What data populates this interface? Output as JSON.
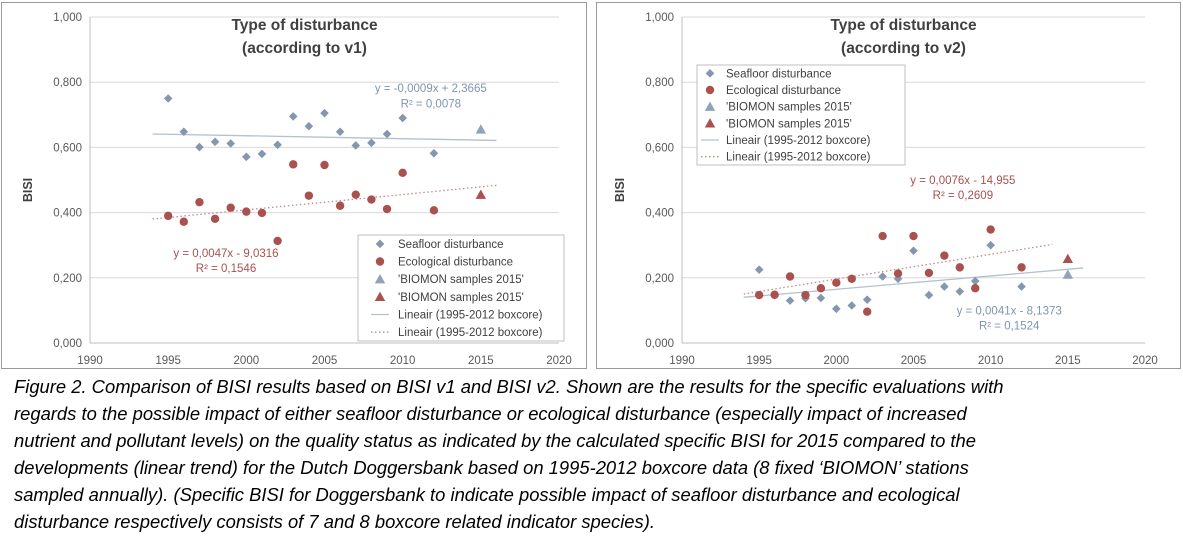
{
  "chart_data": [
    {
      "type": "scatter",
      "title": [
        "Type of disturbance",
        "(according to v1)"
      ],
      "xlabel": "",
      "ylabel": "BISI",
      "xlim": [
        1990,
        2020
      ],
      "ylim": [
        0,
        1
      ],
      "x_ticks": [
        "1990",
        "1995",
        "2000",
        "2005",
        "2010",
        "2015",
        "2020"
      ],
      "y_ticks": [
        "0,000",
        "0,200",
        "0,400",
        "0,600",
        "0,800",
        "1,000"
      ],
      "grid": "horizontal",
      "legend_position": "bottom-right",
      "series": [
        {
          "name": "Seafloor disturbance",
          "marker": "diamond",
          "color": "#8497b0",
          "points": [
            [
              1995,
              0.75
            ],
            [
              1996,
              0.648
            ],
            [
              1997,
              0.601
            ],
            [
              1998,
              0.617
            ],
            [
              1999,
              0.612
            ],
            [
              2000,
              0.571
            ],
            [
              2001,
              0.58
            ],
            [
              2002,
              0.608
            ],
            [
              2003,
              0.695
            ],
            [
              2004,
              0.665
            ],
            [
              2005,
              0.705
            ],
            [
              2006,
              0.648
            ],
            [
              2007,
              0.606
            ],
            [
              2008,
              0.614
            ],
            [
              2009,
              0.641
            ],
            [
              2010,
              0.69
            ],
            [
              2012,
              0.582
            ]
          ]
        },
        {
          "name": "Ecological disturbance",
          "marker": "circle",
          "color": "#a9514f",
          "points": [
            [
              1995,
              0.39
            ],
            [
              1996,
              0.372
            ],
            [
              1997,
              0.432
            ],
            [
              1998,
              0.381
            ],
            [
              1999,
              0.415
            ],
            [
              2000,
              0.403
            ],
            [
              2001,
              0.399
            ],
            [
              2002,
              0.313
            ],
            [
              2003,
              0.548
            ],
            [
              2004,
              0.452
            ],
            [
              2005,
              0.546
            ],
            [
              2006,
              0.421
            ],
            [
              2007,
              0.455
            ],
            [
              2008,
              0.44
            ],
            [
              2009,
              0.411
            ],
            [
              2010,
              0.522
            ],
            [
              2012,
              0.407
            ]
          ]
        },
        {
          "name": "'BIOMON samples 2015'",
          "marker": "triangle",
          "color": "#8fa4b8",
          "points": [
            [
              2015,
              0.655
            ]
          ]
        },
        {
          "name": "'BIOMON samples 2015'",
          "marker": "triangle",
          "color": "#a9514f",
          "points": [
            [
              2015,
              0.455
            ]
          ]
        },
        {
          "name": "Lineair (1995-2012 boxcore)",
          "marker": "line-solid",
          "color": "#b3c0cf",
          "line": [
            [
              1994,
              0.6411
            ],
            [
              2016,
              0.6213
            ]
          ]
        },
        {
          "name": "Lineair (1995-2012 boxcore)",
          "marker": "line-dotted",
          "color": "#c48a88",
          "line": [
            [
              1994,
              0.3802
            ],
            [
              2016,
              0.4836
            ]
          ]
        }
      ],
      "annotations": [
        {
          "text": "y = -0,0009x + 2,3665",
          "color": "#7f95ad",
          "x": 2011.8,
          "y": 0.77
        },
        {
          "text": "R² = 0,0078",
          "color": "#7f95ad",
          "x": 2011.8,
          "y": 0.723
        },
        {
          "text": "y = 0,0047x - 9,0316",
          "color": "#a9514f",
          "x": 1998.7,
          "y": 0.264
        },
        {
          "text": "R² = 0,1546",
          "color": "#a9514f",
          "x": 1998.7,
          "y": 0.218
        }
      ]
    },
    {
      "type": "scatter",
      "title": [
        "Type of disturbance",
        "(according to v2)"
      ],
      "xlabel": "",
      "ylabel": "BISI",
      "xlim": [
        1990,
        2020
      ],
      "ylim": [
        0,
        1
      ],
      "x_ticks": [
        "1990",
        "1995",
        "2000",
        "2005",
        "2010",
        "2015",
        "2020"
      ],
      "y_ticks": [
        "0,000",
        "0,200",
        "0,400",
        "0,600",
        "0,800",
        "1,000"
      ],
      "grid": "horizontal",
      "legend_position": "top-left",
      "series": [
        {
          "name": "Seafloor disturbance",
          "marker": "diamond",
          "color": "#8497b0",
          "points": [
            [
              1995,
              0.225
            ],
            [
              1996,
              0.147
            ],
            [
              1997,
              0.13
            ],
            [
              1998,
              0.137
            ],
            [
              1999,
              0.138
            ],
            [
              2000,
              0.105
            ],
            [
              2001,
              0.115
            ],
            [
              2002,
              0.133
            ],
            [
              2003,
              0.204
            ],
            [
              2004,
              0.197
            ],
            [
              2005,
              0.283
            ],
            [
              2006,
              0.147
            ],
            [
              2007,
              0.173
            ],
            [
              2008,
              0.158
            ],
            [
              2009,
              0.19
            ],
            [
              2010,
              0.3
            ],
            [
              2012,
              0.173
            ]
          ]
        },
        {
          "name": "Ecological disturbance",
          "marker": "circle",
          "color": "#a9514f",
          "points": [
            [
              1995,
              0.147
            ],
            [
              1996,
              0.148
            ],
            [
              1997,
              0.204
            ],
            [
              1998,
              0.147
            ],
            [
              1999,
              0.168
            ],
            [
              2000,
              0.185
            ],
            [
              2001,
              0.197
            ],
            [
              2002,
              0.096
            ],
            [
              2003,
              0.328
            ],
            [
              2004,
              0.213
            ],
            [
              2005,
              0.328
            ],
            [
              2006,
              0.215
            ],
            [
              2007,
              0.268
            ],
            [
              2008,
              0.232
            ],
            [
              2009,
              0.168
            ],
            [
              2010,
              0.348
            ],
            [
              2012,
              0.232
            ]
          ]
        },
        {
          "name": "'BIOMON samples 2015'",
          "marker": "triangle",
          "color": "#8fa4b8",
          "points": [
            [
              2015,
              0.21
            ]
          ]
        },
        {
          "name": "'BIOMON samples 2015'",
          "marker": "triangle",
          "color": "#a9514f",
          "points": [
            [
              2015,
              0.258
            ]
          ]
        },
        {
          "name": "Lineair (1995-2012 boxcore)",
          "marker": "line-solid",
          "color": "#b3c0cf",
          "line": [
            [
              1994,
              0.1401
            ],
            [
              2016,
              0.2303
            ]
          ]
        },
        {
          "name": "Lineair (1995-2012 boxcore)",
          "marker": "line-dotted",
          "color": "#c48a88",
          "line": [
            [
              1994,
              0.1504
            ],
            [
              2014,
              0.3024
            ]
          ]
        }
      ],
      "annotations": [
        {
          "text": "y = 0,0076x - 14,955",
          "color": "#a9514f",
          "x": 2008.2,
          "y": 0.487
        },
        {
          "text": "R² = 0,2609",
          "color": "#a9514f",
          "x": 2008.2,
          "y": 0.441
        },
        {
          "text": "y = 0,0041x - 8,1373",
          "color": "#7f95ad",
          "x": 2011.2,
          "y": 0.087
        },
        {
          "text": "R² = 0,1524",
          "color": "#7f95ad",
          "x": 2011.2,
          "y": 0.042
        }
      ]
    }
  ],
  "caption": [
    "Figure 2. Comparison of BISI results based on BISI v1 and BISI v2. Shown are the results for the specific evaluations with",
    "regards to the possible impact of either seafloor disturbance or ecological disturbance (especially impact of increased",
    "nutrient and pollutant levels)  on the quality status as indicated by the calculated specific BISI for 2015 compared to the",
    "developments (linear trend) for the Dutch Doggersbank based on 1995-2012 boxcore data (8 fixed ‘BIOMON’ stations",
    "sampled annually). (Specific BISI for Doggersbank to indicate possible impact of seafloor disturbance and ecological",
    "disturbance respectively consists  of 7 and 8 boxcore related indicator species)."
  ]
}
